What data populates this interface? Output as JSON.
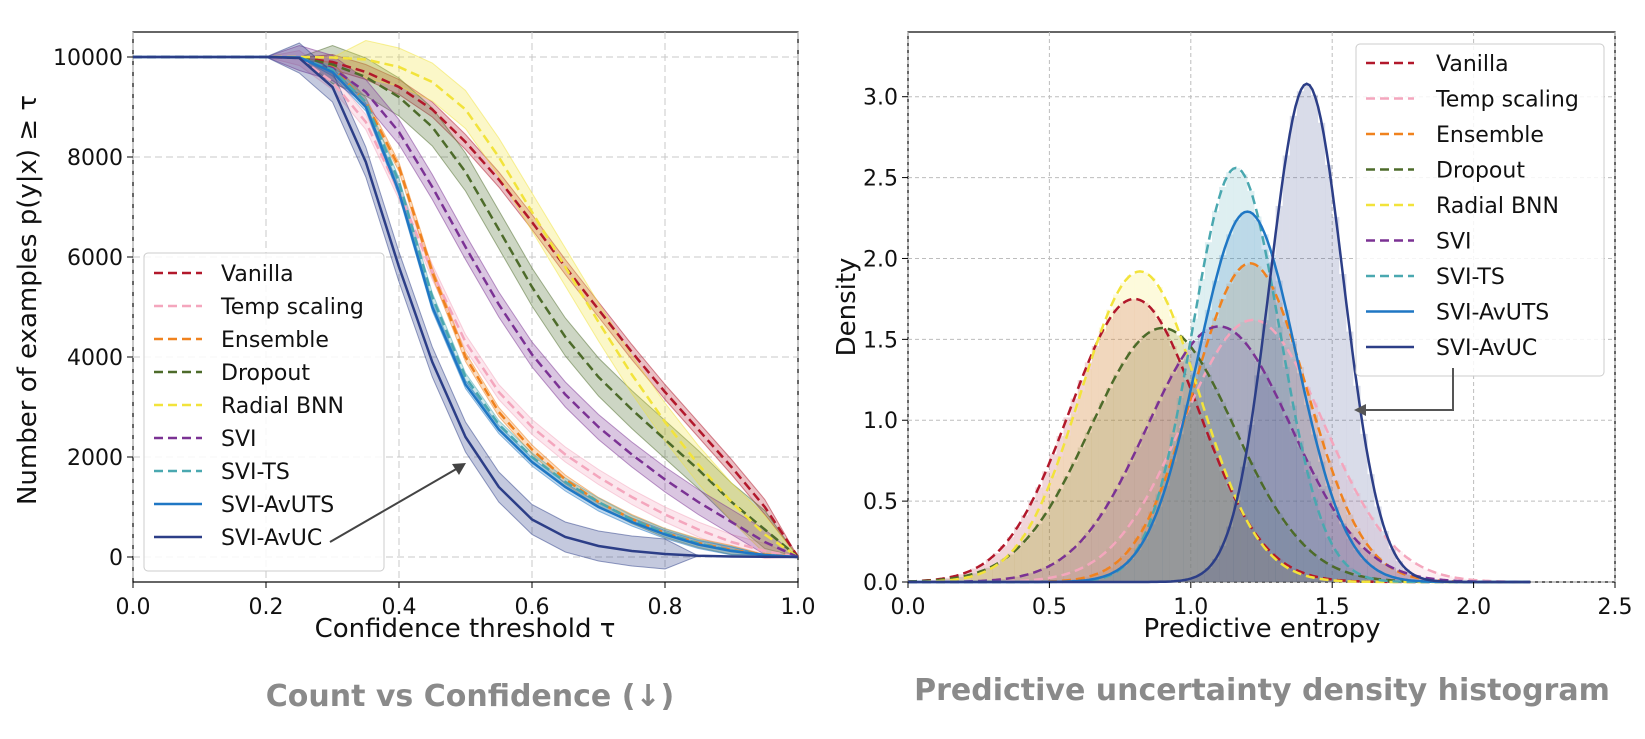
{
  "captions": {
    "left": "Count vs Confidence (↓)",
    "right": "Predictive uncertainty density histogram"
  },
  "chart_data": [
    {
      "type": "line",
      "title": "",
      "xlabel": "Confidence threshold τ",
      "ylabel": "Number of examples  p(y|x)  ≥ τ",
      "xlim": [
        0,
        1
      ],
      "ylim": [
        -500,
        10500
      ],
      "xticks": [
        "0.0",
        "0.2",
        "0.4",
        "0.6",
        "0.8",
        "1.0"
      ],
      "yticks": [
        "0",
        "2000",
        "4000",
        "6000",
        "8000",
        "10000"
      ],
      "grid": true,
      "legend_position": "lower-left",
      "annotation": "arrow pointing to SVI-AvUC curve",
      "x": [
        0.0,
        0.2,
        0.25,
        0.3,
        0.35,
        0.4,
        0.45,
        0.5,
        0.55,
        0.6,
        0.65,
        0.7,
        0.75,
        0.8,
        0.85,
        0.9,
        0.95,
        1.0
      ],
      "series": [
        {
          "name": "Vanilla",
          "color": "#b2182b",
          "dash": true,
          "band": 150,
          "values": [
            10000,
            10000,
            9990,
            9900,
            9700,
            9400,
            8950,
            8300,
            7550,
            6700,
            5800,
            4950,
            4100,
            3300,
            2550,
            1800,
            1000,
            0
          ]
        },
        {
          "name": "Temp scaling",
          "color": "#f4a6bd",
          "dash": true,
          "band": 150,
          "values": [
            10000,
            10000,
            9980,
            9500,
            8700,
            7300,
            5700,
            4300,
            3300,
            2600,
            2050,
            1600,
            1200,
            850,
            550,
            300,
            120,
            0
          ]
        },
        {
          "name": "Ensemble",
          "color": "#f0821e",
          "dash": true,
          "band": 90,
          "values": [
            10000,
            10000,
            9990,
            9800,
            9100,
            7800,
            5700,
            4000,
            2900,
            2150,
            1550,
            1100,
            760,
            480,
            280,
            140,
            50,
            0
          ]
        },
        {
          "name": "Dropout",
          "color": "#4d6b2a",
          "dash": true,
          "band": 380,
          "values": [
            10000,
            10000,
            9990,
            9850,
            9600,
            9200,
            8600,
            7700,
            6550,
            5400,
            4400,
            3600,
            2950,
            2350,
            1750,
            1100,
            550,
            0
          ]
        },
        {
          "name": "Radial BNN",
          "color": "#f2e33b",
          "dash": true,
          "band": 380,
          "values": [
            10000,
            10000,
            10000,
            9990,
            9950,
            9800,
            9500,
            8950,
            8000,
            6900,
            5800,
            4700,
            3650,
            2700,
            1850,
            1100,
            450,
            0
          ]
        },
        {
          "name": "SVI",
          "color": "#7b3294",
          "dash": true,
          "band": 250,
          "values": [
            10000,
            10000,
            9980,
            9780,
            9300,
            8500,
            7400,
            6200,
            5050,
            4050,
            3250,
            2600,
            2050,
            1550,
            1100,
            700,
            300,
            0
          ]
        },
        {
          "name": "SVI-TS",
          "color": "#4aa8b0",
          "dash": true,
          "band": 80,
          "values": [
            10000,
            10000,
            9990,
            9750,
            9100,
            7500,
            5200,
            3600,
            2650,
            2000,
            1500,
            1100,
            750,
            480,
            270,
            130,
            40,
            0
          ]
        },
        {
          "name": "SVI-AvUTS",
          "color": "#1f77c4",
          "dash": false,
          "band": 80,
          "values": [
            10000,
            10000,
            9990,
            9700,
            9000,
            7300,
            5000,
            3450,
            2550,
            1900,
            1400,
            1000,
            700,
            450,
            250,
            120,
            40,
            0
          ]
        },
        {
          "name": "SVI-AvUC",
          "color": "#2c3e87",
          "dash": false,
          "band": 300,
          "values": [
            10000,
            10000,
            9980,
            9400,
            7900,
            5800,
            3900,
            2400,
            1400,
            750,
            400,
            220,
            120,
            60,
            25,
            10,
            4,
            0
          ]
        }
      ]
    },
    {
      "type": "area",
      "title": "",
      "xlabel": "Predictive entropy",
      "ylabel": "Density",
      "xlim": [
        0,
        2.5
      ],
      "ylim": [
        0,
        3.4
      ],
      "xticks": [
        "0.0",
        "0.5",
        "1.0",
        "1.5",
        "2.0",
        "2.5"
      ],
      "yticks": [
        "0.0",
        "0.5",
        "1.0",
        "1.5",
        "2.0",
        "2.5",
        "3.0"
      ],
      "grid": true,
      "legend_position": "top-right",
      "annotation": "arrow pointing from SVI-AvUC legend entry to SVI-AvUC peak",
      "series": [
        {
          "name": "Vanilla",
          "color": "#b2182b",
          "dash": true,
          "mean": 0.8,
          "sd": 0.228,
          "peak": 1.75
        },
        {
          "name": "Temp scaling",
          "color": "#f4a6bd",
          "dash": true,
          "mean": 1.22,
          "sd": 0.25,
          "peak": 1.62
        },
        {
          "name": "Ensemble",
          "color": "#f0821e",
          "dash": true,
          "mean": 1.21,
          "sd": 0.2,
          "peak": 1.97
        },
        {
          "name": "Dropout",
          "color": "#4d6b2a",
          "dash": true,
          "mean": 0.9,
          "sd": 0.255,
          "peak": 1.57
        },
        {
          "name": "Radial BNN",
          "color": "#f2e33b",
          "dash": true,
          "mean": 0.82,
          "sd": 0.21,
          "peak": 1.92
        },
        {
          "name": "SVI",
          "color": "#7b3294",
          "dash": true,
          "mean": 1.1,
          "sd": 0.255,
          "peak": 1.58
        },
        {
          "name": "SVI-TS",
          "color": "#4aa8b0",
          "dash": true,
          "mean": 1.16,
          "sd": 0.155,
          "peak": 2.56
        },
        {
          "name": "SVI-AvUTS",
          "color": "#1f77c4",
          "dash": false,
          "mean": 1.2,
          "sd": 0.175,
          "peak": 2.29
        },
        {
          "name": "SVI-AvUC",
          "color": "#2c3e87",
          "dash": false,
          "mean": 1.41,
          "sd": 0.13,
          "peak": 3.08
        }
      ]
    }
  ]
}
